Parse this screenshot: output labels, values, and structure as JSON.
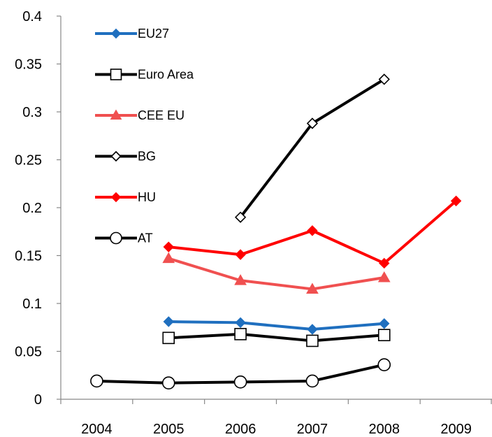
{
  "chart_data": {
    "type": "line",
    "title": "",
    "xlabel": "",
    "ylabel": "",
    "categories": [
      "2004",
      "2005",
      "2006",
      "2007",
      "2008",
      "2009"
    ],
    "ylim": [
      0,
      0.4
    ],
    "yticks": [
      0,
      0.05,
      0.1,
      0.15,
      0.2,
      0.25,
      0.3,
      0.35,
      0.4
    ],
    "ytick_labels": [
      "0",
      "0.05",
      "0.1",
      "0.15",
      "0.2",
      "0.25",
      "0.3",
      "0.35",
      "0.4"
    ],
    "grid": false,
    "legend_position": "top-left",
    "series": [
      {
        "name": "EU27",
        "color": "#1f6fbf",
        "marker": "diamond-filled",
        "values": [
          null,
          0.081,
          0.08,
          0.073,
          0.079,
          null
        ]
      },
      {
        "name": "Euro Area",
        "color": "#000000",
        "marker": "square-open",
        "values": [
          null,
          0.064,
          0.068,
          0.061,
          0.067,
          null
        ]
      },
      {
        "name": "CEE EU",
        "color": "#f05050",
        "marker": "triangle-filled",
        "values": [
          null,
          0.147,
          0.124,
          0.115,
          0.127,
          null
        ]
      },
      {
        "name": "BG",
        "color": "#000000",
        "marker": "diamond-open",
        "values": [
          null,
          null,
          0.19,
          0.288,
          0.334,
          null
        ]
      },
      {
        "name": "HU",
        "color": "#ff0000",
        "marker": "diamond-filled",
        "values": [
          null,
          0.159,
          0.151,
          0.176,
          0.142,
          0.207
        ]
      },
      {
        "name": "AT",
        "color": "#000000",
        "marker": "circle-open",
        "values": [
          0.019,
          0.017,
          0.018,
          0.019,
          0.036,
          null
        ]
      }
    ]
  }
}
